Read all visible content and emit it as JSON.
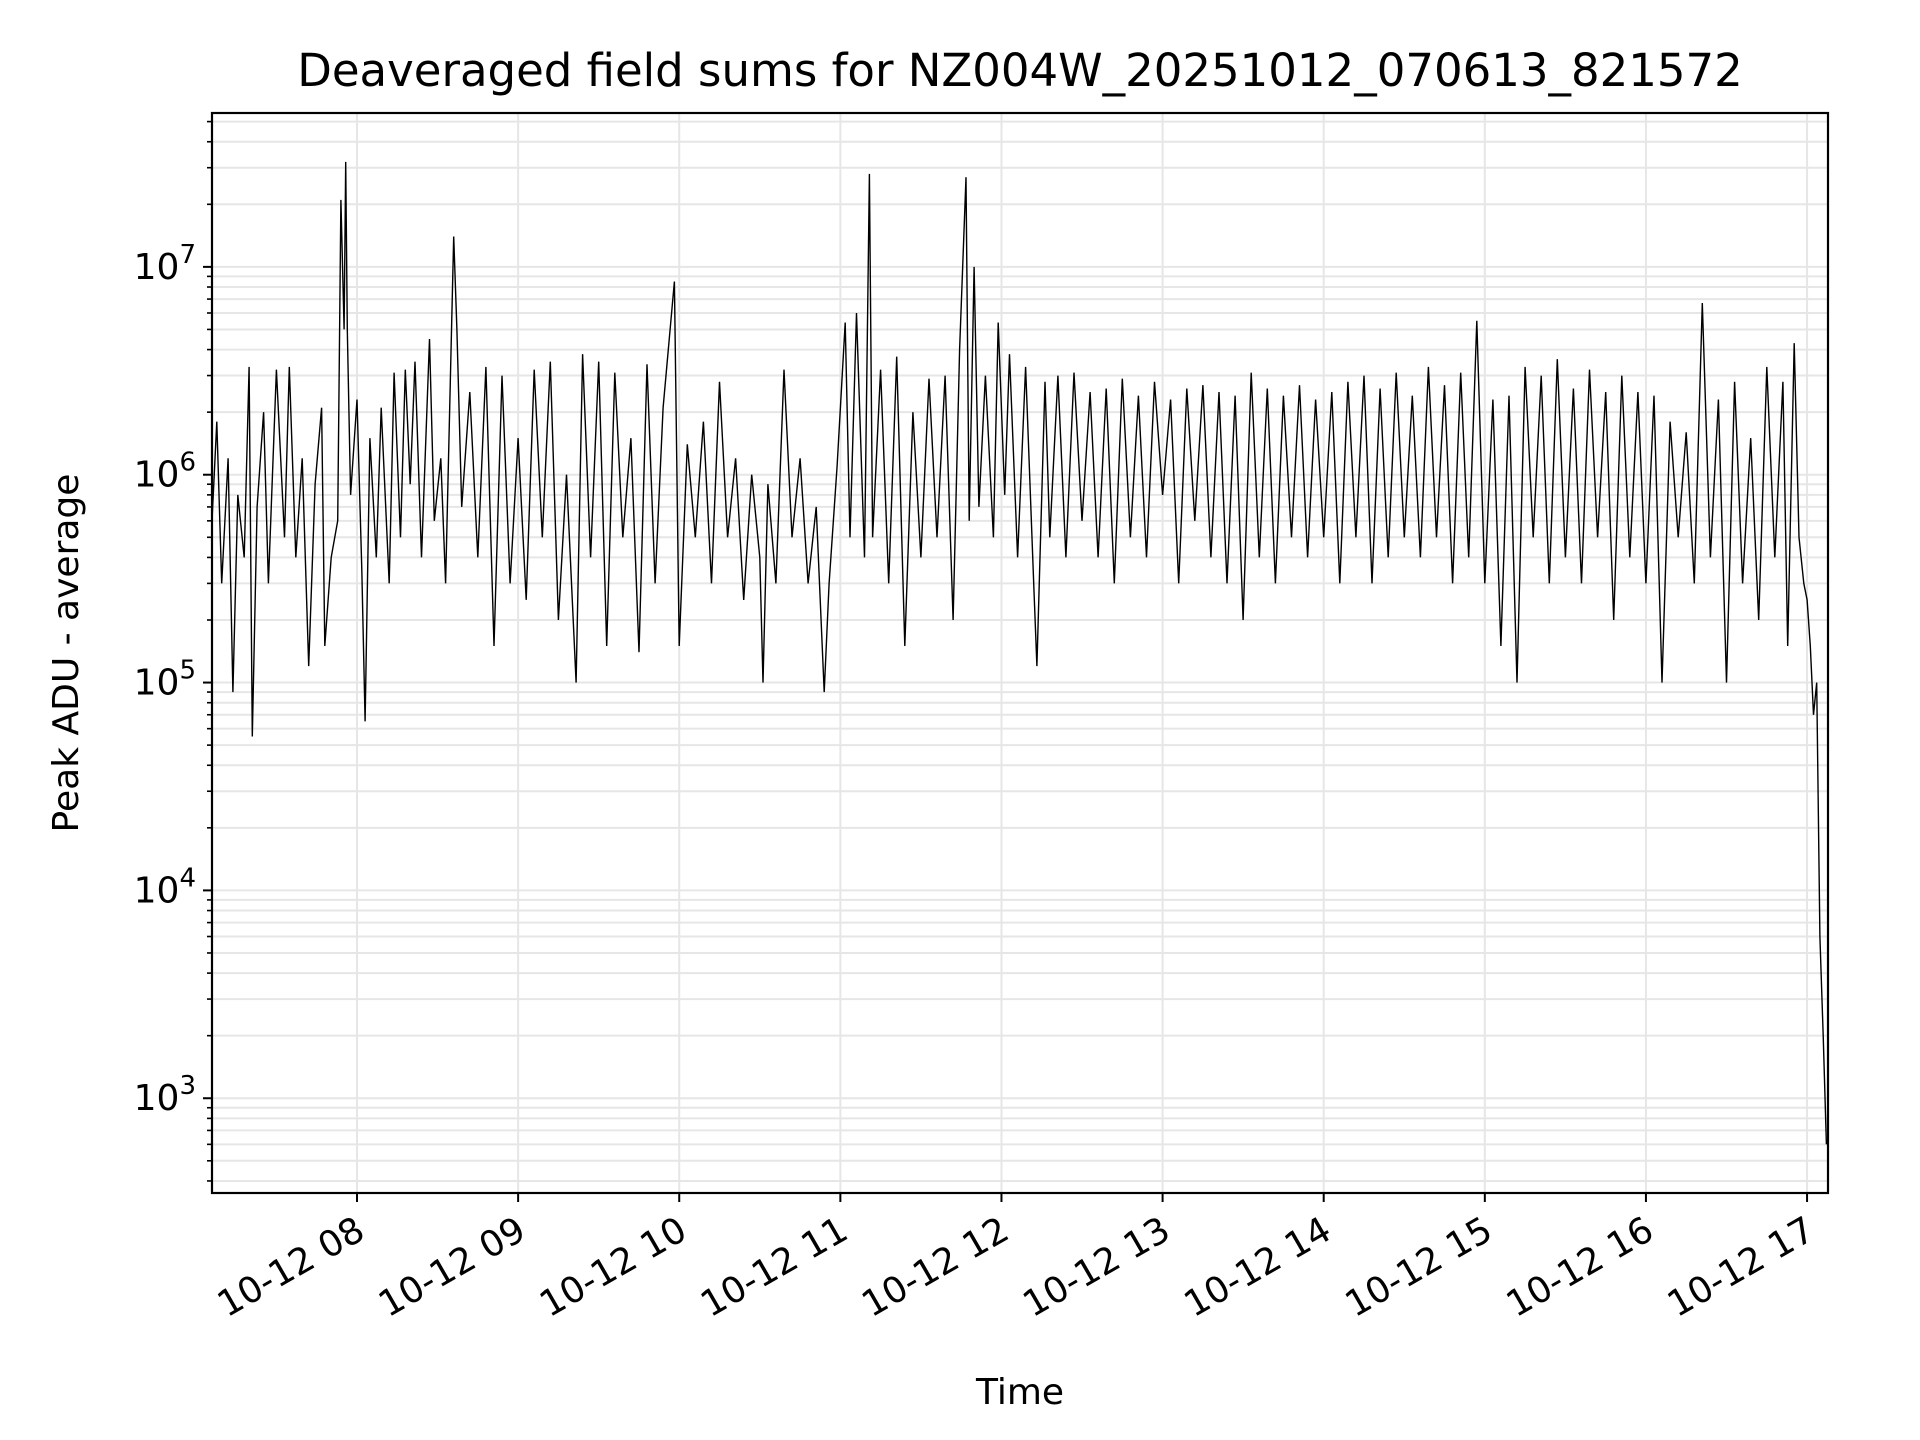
{
  "chart_data": {
    "type": "line",
    "title": "Deaveraged field sums for NZ004W_20251012_070613_821572",
    "xlabel": "Time",
    "ylabel": "Peak ADU - average",
    "yscale": "log",
    "ylim": [
      350,
      55000000
    ],
    "xlim_hours": [
      7.1,
      17.13
    ],
    "grid": true,
    "colors": {
      "line": "#000000",
      "grid": "#e6e6e6",
      "axes": "#000000"
    },
    "y_ticks": [
      {
        "value": 1000,
        "base": "10",
        "exp": "3"
      },
      {
        "value": 10000,
        "base": "10",
        "exp": "4"
      },
      {
        "value": 100000,
        "base": "10",
        "exp": "5"
      },
      {
        "value": 1000000,
        "base": "10",
        "exp": "6"
      },
      {
        "value": 10000000,
        "base": "10",
        "exp": "7"
      }
    ],
    "x_ticks": [
      {
        "hour": 8,
        "label": "10-12 08"
      },
      {
        "hour": 9,
        "label": "10-12 09"
      },
      {
        "hour": 10,
        "label": "10-12 10"
      },
      {
        "hour": 11,
        "label": "10-12 11"
      },
      {
        "hour": 12,
        "label": "10-12 12"
      },
      {
        "hour": 13,
        "label": "10-12 13"
      },
      {
        "hour": 14,
        "label": "10-12 14"
      },
      {
        "hour": 15,
        "label": "10-12 15"
      },
      {
        "hour": 16,
        "label": "10-12 16"
      },
      {
        "hour": 17,
        "label": "10-12 17"
      }
    ],
    "series": [
      {
        "name": "Peak ADU - average",
        "points": [
          [
            7.1,
            600000
          ],
          [
            7.13,
            1800000
          ],
          [
            7.16,
            300000
          ],
          [
            7.2,
            1200000
          ],
          [
            7.23,
            90000
          ],
          [
            7.26,
            800000
          ],
          [
            7.3,
            400000
          ],
          [
            7.33,
            3300000
          ],
          [
            7.35,
            55000
          ],
          [
            7.38,
            700000
          ],
          [
            7.42,
            2000000
          ],
          [
            7.45,
            300000
          ],
          [
            7.5,
            3200000
          ],
          [
            7.55,
            500000
          ],
          [
            7.58,
            3300000
          ],
          [
            7.62,
            400000
          ],
          [
            7.66,
            1200000
          ],
          [
            7.7,
            120000
          ],
          [
            7.74,
            900000
          ],
          [
            7.78,
            2100000
          ],
          [
            7.8,
            150000
          ],
          [
            7.84,
            400000
          ],
          [
            7.88,
            600000
          ],
          [
            7.9,
            21000000
          ],
          [
            7.92,
            5000000
          ],
          [
            7.93,
            32000000
          ],
          [
            7.94,
            5000000
          ],
          [
            7.96,
            800000
          ],
          [
            8.0,
            2300000
          ],
          [
            8.03,
            350000
          ],
          [
            8.05,
            65000
          ],
          [
            8.08,
            1500000
          ],
          [
            8.12,
            400000
          ],
          [
            8.15,
            2100000
          ],
          [
            8.2,
            300000
          ],
          [
            8.23,
            3100000
          ],
          [
            8.27,
            500000
          ],
          [
            8.3,
            3200000
          ],
          [
            8.33,
            900000
          ],
          [
            8.36,
            3500000
          ],
          [
            8.4,
            400000
          ],
          [
            8.45,
            4500000
          ],
          [
            8.48,
            600000
          ],
          [
            8.52,
            1200000
          ],
          [
            8.55,
            300000
          ],
          [
            8.6,
            14000000
          ],
          [
            8.62,
            5000000
          ],
          [
            8.65,
            700000
          ],
          [
            8.7,
            2500000
          ],
          [
            8.75,
            400000
          ],
          [
            8.8,
            3300000
          ],
          [
            8.85,
            150000
          ],
          [
            8.9,
            3000000
          ],
          [
            8.95,
            300000
          ],
          [
            9.0,
            1500000
          ],
          [
            9.05,
            250000
          ],
          [
            9.1,
            3200000
          ],
          [
            9.15,
            500000
          ],
          [
            9.2,
            3500000
          ],
          [
            9.25,
            200000
          ],
          [
            9.3,
            1000000
          ],
          [
            9.36,
            100000
          ],
          [
            9.4,
            3800000
          ],
          [
            9.45,
            400000
          ],
          [
            9.5,
            3500000
          ],
          [
            9.55,
            150000
          ],
          [
            9.6,
            3100000
          ],
          [
            9.65,
            500000
          ],
          [
            9.7,
            1500000
          ],
          [
            9.75,
            140000
          ],
          [
            9.8,
            3400000
          ],
          [
            9.85,
            300000
          ],
          [
            9.9,
            2100000
          ],
          [
            9.97,
            8500000
          ],
          [
            10.0,
            150000
          ],
          [
            10.05,
            1400000
          ],
          [
            10.1,
            500000
          ],
          [
            10.15,
            1800000
          ],
          [
            10.2,
            300000
          ],
          [
            10.25,
            2800000
          ],
          [
            10.3,
            500000
          ],
          [
            10.35,
            1200000
          ],
          [
            10.4,
            250000
          ],
          [
            10.45,
            1000000
          ],
          [
            10.5,
            400000
          ],
          [
            10.52,
            100000
          ],
          [
            10.55,
            900000
          ],
          [
            10.6,
            300000
          ],
          [
            10.65,
            3200000
          ],
          [
            10.7,
            500000
          ],
          [
            10.75,
            1200000
          ],
          [
            10.8,
            300000
          ],
          [
            10.85,
            700000
          ],
          [
            10.9,
            90000
          ],
          [
            10.93,
            300000
          ],
          [
            10.98,
            1100000
          ],
          [
            11.03,
            5400000
          ],
          [
            11.06,
            500000
          ],
          [
            11.1,
            6000000
          ],
          [
            11.15,
            400000
          ],
          [
            11.18,
            28000000
          ],
          [
            11.2,
            500000
          ],
          [
            11.25,
            3200000
          ],
          [
            11.3,
            300000
          ],
          [
            11.35,
            3700000
          ],
          [
            11.4,
            150000
          ],
          [
            11.45,
            2000000
          ],
          [
            11.5,
            400000
          ],
          [
            11.55,
            2900000
          ],
          [
            11.6,
            500000
          ],
          [
            11.65,
            3000000
          ],
          [
            11.7,
            200000
          ],
          [
            11.74,
            4000000
          ],
          [
            11.78,
            27000000
          ],
          [
            11.8,
            600000
          ],
          [
            11.83,
            10000000
          ],
          [
            11.86,
            700000
          ],
          [
            11.9,
            3000000
          ],
          [
            11.95,
            500000
          ],
          [
            11.98,
            5400000
          ],
          [
            12.02,
            800000
          ],
          [
            12.05,
            3800000
          ],
          [
            12.1,
            400000
          ],
          [
            12.15,
            3300000
          ],
          [
            12.2,
            300000
          ],
          [
            12.22,
            120000
          ],
          [
            12.27,
            2800000
          ],
          [
            12.3,
            500000
          ],
          [
            12.35,
            3000000
          ],
          [
            12.4,
            400000
          ],
          [
            12.45,
            3100000
          ],
          [
            12.5,
            600000
          ],
          [
            12.55,
            2500000
          ],
          [
            12.6,
            400000
          ],
          [
            12.65,
            2600000
          ],
          [
            12.7,
            300000
          ],
          [
            12.75,
            2900000
          ],
          [
            12.8,
            500000
          ],
          [
            12.85,
            2400000
          ],
          [
            12.9,
            400000
          ],
          [
            12.95,
            2800000
          ],
          [
            13.0,
            800000
          ],
          [
            13.05,
            2300000
          ],
          [
            13.1,
            300000
          ],
          [
            13.15,
            2600000
          ],
          [
            13.2,
            600000
          ],
          [
            13.25,
            2700000
          ],
          [
            13.3,
            400000
          ],
          [
            13.35,
            2500000
          ],
          [
            13.4,
            300000
          ],
          [
            13.45,
            2400000
          ],
          [
            13.5,
            200000
          ],
          [
            13.55,
            3100000
          ],
          [
            13.6,
            400000
          ],
          [
            13.65,
            2600000
          ],
          [
            13.7,
            300000
          ],
          [
            13.75,
            2400000
          ],
          [
            13.8,
            500000
          ],
          [
            13.85,
            2700000
          ],
          [
            13.9,
            400000
          ],
          [
            13.95,
            2300000
          ],
          [
            14.0,
            500000
          ],
          [
            14.05,
            2500000
          ],
          [
            14.1,
            300000
          ],
          [
            14.15,
            2800000
          ],
          [
            14.2,
            500000
          ],
          [
            14.25,
            3000000
          ],
          [
            14.3,
            300000
          ],
          [
            14.35,
            2600000
          ],
          [
            14.4,
            400000
          ],
          [
            14.45,
            3100000
          ],
          [
            14.5,
            500000
          ],
          [
            14.55,
            2400000
          ],
          [
            14.6,
            400000
          ],
          [
            14.65,
            3300000
          ],
          [
            14.7,
            500000
          ],
          [
            14.75,
            2700000
          ],
          [
            14.8,
            300000
          ],
          [
            14.85,
            3100000
          ],
          [
            14.9,
            400000
          ],
          [
            14.95,
            5500000
          ],
          [
            15.0,
            300000
          ],
          [
            15.05,
            2300000
          ],
          [
            15.1,
            150000
          ],
          [
            15.15,
            2400000
          ],
          [
            15.2,
            100000
          ],
          [
            15.25,
            3300000
          ],
          [
            15.3,
            500000
          ],
          [
            15.35,
            3000000
          ],
          [
            15.4,
            300000
          ],
          [
            15.45,
            3600000
          ],
          [
            15.5,
            400000
          ],
          [
            15.55,
            2600000
          ],
          [
            15.6,
            300000
          ],
          [
            15.65,
            3200000
          ],
          [
            15.7,
            500000
          ],
          [
            15.75,
            2500000
          ],
          [
            15.8,
            200000
          ],
          [
            15.85,
            3000000
          ],
          [
            15.9,
            400000
          ],
          [
            15.95,
            2500000
          ],
          [
            16.0,
            300000
          ],
          [
            16.05,
            2400000
          ],
          [
            16.1,
            100000
          ],
          [
            16.15,
            1800000
          ],
          [
            16.2,
            500000
          ],
          [
            16.25,
            1600000
          ],
          [
            16.3,
            300000
          ],
          [
            16.35,
            6700000
          ],
          [
            16.4,
            400000
          ],
          [
            16.45,
            2300000
          ],
          [
            16.5,
            100000
          ],
          [
            16.55,
            2800000
          ],
          [
            16.6,
            300000
          ],
          [
            16.65,
            1500000
          ],
          [
            16.7,
            200000
          ],
          [
            16.75,
            3300000
          ],
          [
            16.8,
            400000
          ],
          [
            16.85,
            2800000
          ],
          [
            16.88,
            150000
          ],
          [
            16.92,
            4300000
          ],
          [
            16.95,
            500000
          ],
          [
            16.98,
            300000
          ],
          [
            17.0,
            250000
          ],
          [
            17.02,
            150000
          ],
          [
            17.04,
            70000
          ],
          [
            17.06,
            100000
          ],
          [
            17.08,
            6000
          ],
          [
            17.1,
            2000
          ],
          [
            17.12,
            600
          ]
        ]
      }
    ]
  }
}
